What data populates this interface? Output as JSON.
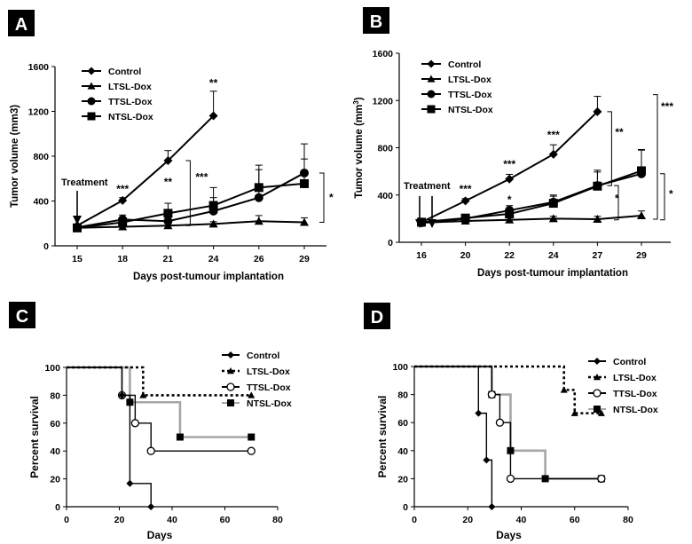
{
  "chart_data": [
    {
      "panel": "A",
      "type": "line",
      "ylabel": "Tumor volume (mm3)",
      "xlabel": "Days post-tumour implantation",
      "categories": [
        "15",
        "18",
        "21",
        "24",
        "26",
        "29"
      ],
      "ylim": [
        0,
        1600
      ],
      "yticks": [
        0,
        400,
        800,
        1200,
        1600
      ],
      "series": [
        {
          "name": "Control",
          "marker": "diamond",
          "values": [
            180,
            405,
            760,
            1160,
            null,
            null
          ],
          "errors": [
            0,
            25,
            90,
            220,
            0,
            0
          ]
        },
        {
          "name": "LTSL-Dox",
          "marker": "triangle",
          "values": [
            160,
            170,
            180,
            195,
            220,
            210
          ],
          "errors": [
            0,
            15,
            20,
            20,
            50,
            40
          ]
        },
        {
          "name": "TTSL-Dox",
          "marker": "circle",
          "values": [
            165,
            235,
            220,
            310,
            430,
            650
          ],
          "errors": [
            0,
            40,
            60,
            120,
            250,
            260
          ]
        },
        {
          "name": "NTSL-Dox",
          "marker": "square",
          "values": [
            160,
            210,
            290,
            360,
            520,
            555
          ],
          "errors": [
            0,
            40,
            90,
            160,
            200,
            220
          ]
        }
      ],
      "annotations": [
        {
          "text": "Treatment",
          "category": "15"
        },
        {
          "text": "***",
          "category": "18",
          "value": 475
        },
        {
          "text": "**",
          "category": "21",
          "value": 540
        },
        {
          "text": "**",
          "category": "24",
          "value": 1420
        },
        {
          "text": "***",
          "bracket": "21"
        },
        {
          "text": "*",
          "bracket": "29"
        }
      ]
    },
    {
      "panel": "B",
      "type": "line",
      "ylabel": "Tumor volume (mm",
      "ylabel_sup": "3",
      "ylabel_end": ")",
      "xlabel": "Days post-tumour implantation",
      "categories": [
        "16",
        "20",
        "22",
        "24",
        "27",
        "29"
      ],
      "ylim": [
        0,
        1600
      ],
      "yticks": [
        0,
        400,
        800,
        1200,
        1600
      ],
      "series": [
        {
          "name": "Control",
          "marker": "diamond",
          "values": [
            170,
            350,
            535,
            745,
            1105,
            null
          ],
          "errors": [
            0,
            20,
            40,
            80,
            130,
            0
          ]
        },
        {
          "name": "LTSL-Dox",
          "marker": "triangle",
          "values": [
            165,
            180,
            190,
            200,
            195,
            225
          ],
          "errors": [
            0,
            15,
            20,
            20,
            25,
            40
          ]
        },
        {
          "name": "TTSL-Dox",
          "marker": "circle",
          "values": [
            165,
            200,
            270,
            340,
            480,
            580
          ],
          "errors": [
            0,
            20,
            40,
            60,
            130,
            200
          ]
        },
        {
          "name": "NTSL-Dox",
          "marker": "square",
          "values": [
            170,
            205,
            240,
            330,
            475,
            605
          ],
          "errors": [
            0,
            20,
            40,
            60,
            120,
            180
          ]
        }
      ],
      "annotations": [
        {
          "text": "Treatment",
          "category": "16"
        },
        {
          "text": "***",
          "category": "20",
          "value": 420
        },
        {
          "text": "***",
          "category": "22",
          "value": 630
        },
        {
          "text": "***",
          "category": "24",
          "value": 880
        },
        {
          "text": "*",
          "category": "22",
          "value": 330
        },
        {
          "text": "**",
          "bracket": "27"
        },
        {
          "text": "***",
          "bracket": "29"
        },
        {
          "text": "*",
          "bracket": "29b"
        },
        {
          "text": "*",
          "bracket": "29c"
        }
      ]
    },
    {
      "panel": "C",
      "type": "line",
      "step": true,
      "ylabel": "Percent survival",
      "xlabel": "Days",
      "xlim": [
        0,
        80
      ],
      "xticks": [
        0,
        20,
        40,
        60,
        80
      ],
      "ylim": [
        0,
        100
      ],
      "yticks": [
        0,
        20,
        40,
        60,
        80,
        100
      ],
      "series": [
        {
          "name": "Control",
          "marker": "diamond",
          "color": "#000000",
          "x": [
            0,
            21,
            24,
            32
          ],
          "y": [
            100,
            80,
            16.7,
            0
          ]
        },
        {
          "name": "LTSL-Dox",
          "marker": "triangle",
          "color": "#000000",
          "x": [
            0,
            29,
            70
          ],
          "y": [
            100,
            80,
            80
          ]
        },
        {
          "name": "TTSL-Dox",
          "marker": "circle-open",
          "color": "#000000",
          "x": [
            0,
            21,
            26,
            32,
            70
          ],
          "y": [
            100,
            80,
            60,
            40,
            40
          ]
        },
        {
          "name": "NTSL-Dox",
          "marker": "square",
          "color": "#a6a6a6",
          "x": [
            0,
            24,
            43,
            70
          ],
          "y": [
            100,
            75,
            50,
            50
          ]
        }
      ]
    },
    {
      "panel": "D",
      "type": "line",
      "step": true,
      "ylabel": "Percent survival",
      "xlabel": "Days",
      "xlim": [
        0,
        80
      ],
      "xticks": [
        0,
        20,
        40,
        60,
        80
      ],
      "ylim": [
        0,
        100
      ],
      "yticks": [
        0,
        20,
        40,
        60,
        80,
        100
      ],
      "series": [
        {
          "name": "Control",
          "marker": "diamond",
          "color": "#000000",
          "x": [
            0,
            24,
            27,
            29
          ],
          "y": [
            100,
            66.7,
            33.3,
            0
          ]
        },
        {
          "name": "LTSL-Dox",
          "marker": "triangle",
          "color": "#000000",
          "x": [
            0,
            56,
            60,
            70
          ],
          "y": [
            100,
            83.3,
            66.7,
            66.7
          ]
        },
        {
          "name": "TTSL-Dox",
          "marker": "circle-open",
          "color": "#000000",
          "x": [
            0,
            29,
            32,
            36,
            70
          ],
          "y": [
            100,
            80,
            60,
            20,
            20
          ]
        },
        {
          "name": "NTSL-Dox",
          "marker": "square",
          "color": "#a6a6a6",
          "x": [
            0,
            29,
            36,
            49,
            70
          ],
          "y": [
            100,
            80,
            40,
            20,
            20
          ]
        }
      ]
    }
  ]
}
